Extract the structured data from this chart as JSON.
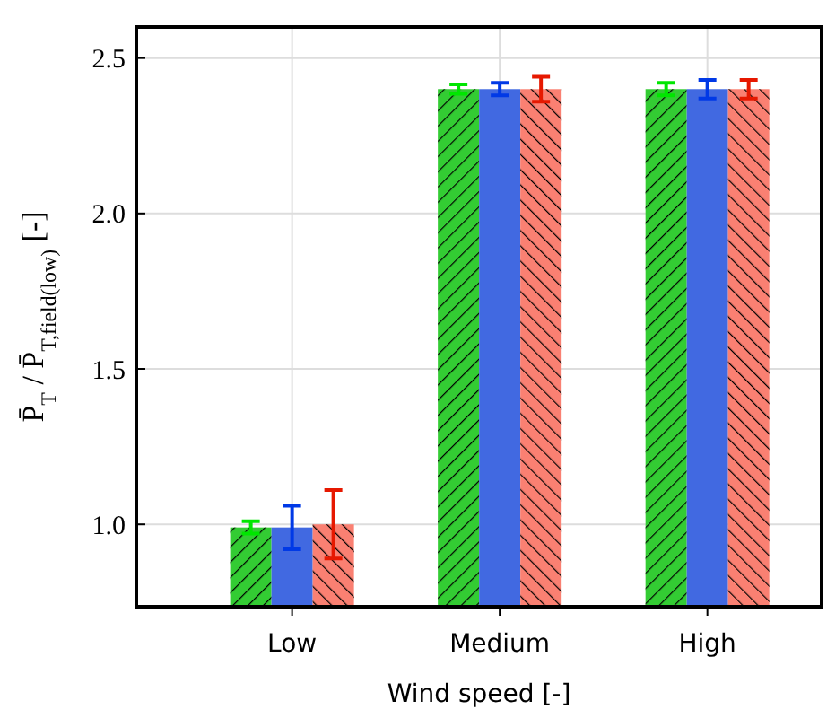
{
  "chart_data": {
    "type": "bar",
    "xlabel": "Wind speed [-]",
    "ylabel": "P̄$_{T}$ / P̄$_{T,field(low)}$ [-]",
    "categories": [
      "Low",
      "Medium",
      "High"
    ],
    "series": [
      {
        "color": "#33cc33",
        "values": [
          0.99,
          2.4,
          2.4
        ],
        "errors": [
          0.02,
          0.015,
          0.02
        ]
      },
      {
        "color": "#4169e1",
        "values": [
          0.99,
          2.4,
          2.4
        ],
        "errors": [
          0.07,
          0.02,
          0.03
        ]
      },
      {
        "color": "#fa8072",
        "values": [
          1.0,
          2.4,
          2.4
        ],
        "errors": [
          0.11,
          0.04,
          0.03
        ]
      }
    ],
    "ylim": [
      0.735,
      2.6
    ],
    "yticks": [
      {
        "value": 1,
        "label": "1.0"
      },
      {
        "value": 1.5,
        "label": "1.5"
      },
      {
        "value": 2,
        "label": "2.0"
      },
      {
        "value": 2.5,
        "label": "2.5"
      }
    ],
    "grid": true
  }
}
